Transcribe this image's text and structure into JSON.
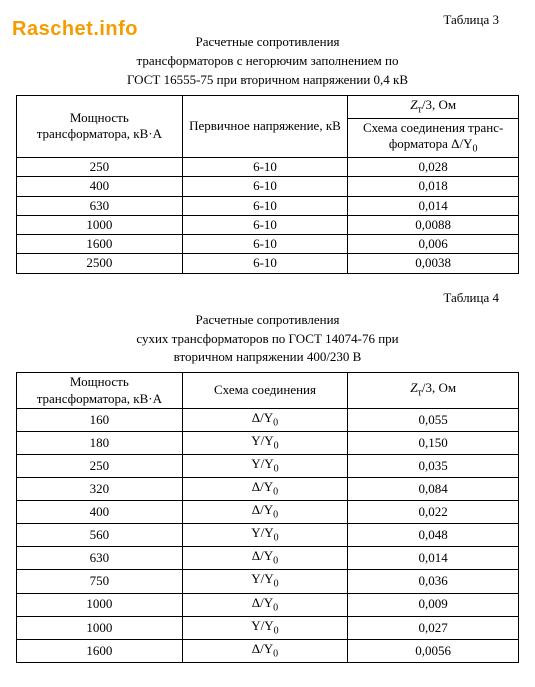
{
  "watermark": "Raschet.info",
  "tables": [
    {
      "label": "Таблица 3",
      "title_lines": [
        "Расчетные сопротивления",
        "трансформаторов с негорючим заполнением по",
        "ГОСТ 16555-75 при вторичном напряжении 0,4 кВ"
      ],
      "header_row1_col0": "Мощность трансформатора, кВ·А",
      "header_row1_col1": "Первичное напряжение, кВ",
      "header_row1_col2_html": "<i>Z</i><span class=\"sub\">т</span>/3, Ом",
      "header_row2_col2_html": "Схема соединения транс-<br>форматора Δ/Y<span class=\"sub\">0</span>",
      "rows": [
        [
          "250",
          "6-10",
          "0,028"
        ],
        [
          "400",
          "6-10",
          "0,018"
        ],
        [
          "630",
          "6-10",
          "0,014"
        ],
        [
          "1000",
          "6-10",
          "0,0088"
        ],
        [
          "1600",
          "6-10",
          "0,006"
        ],
        [
          "2500",
          "6-10",
          "0,0038"
        ]
      ]
    },
    {
      "label": "Таблица 4",
      "title_lines": [
        "Расчетные сопротивления",
        "сухих трансформаторов по ГОСТ 14074-76 при",
        "вторичном напряжении 400/230 В"
      ],
      "header_col0": "Мощность трансформатора, кВ·А",
      "header_col1": "Схема соединения",
      "header_col2_html": "<i>Z</i><span class=\"sub\">т</span>/3, Ом",
      "rows_html": [
        [
          "160",
          "Δ/Y<span class=\"sub\">0</span>",
          "0,055"
        ],
        [
          "180",
          "Y/Y<span class=\"sub\">0</span>",
          "0,150"
        ],
        [
          "250",
          "Y/Y<span class=\"sub\">0</span>",
          "0,035"
        ],
        [
          "320",
          "Δ/Y<span class=\"sub\">0</span>",
          "0,084"
        ],
        [
          "400",
          "Δ/Y<span class=\"sub\">0</span>",
          "0,022"
        ],
        [
          "560",
          "Y/Y<span class=\"sub\">0</span>",
          "0,048"
        ],
        [
          "630",
          "Δ/Y<span class=\"sub\">0</span>",
          "0,014"
        ],
        [
          "750",
          "Y/Y<span class=\"sub\">0</span>",
          "0,036"
        ],
        [
          "1000",
          "Δ/Y<span class=\"sub\">0</span>",
          "0,009"
        ],
        [
          "1000",
          "Y/Y<span class=\"sub\">0</span>",
          "0,027"
        ],
        [
          "1600",
          "Δ/Y<span class=\"sub\">0</span>",
          "0,0056"
        ]
      ]
    }
  ]
}
